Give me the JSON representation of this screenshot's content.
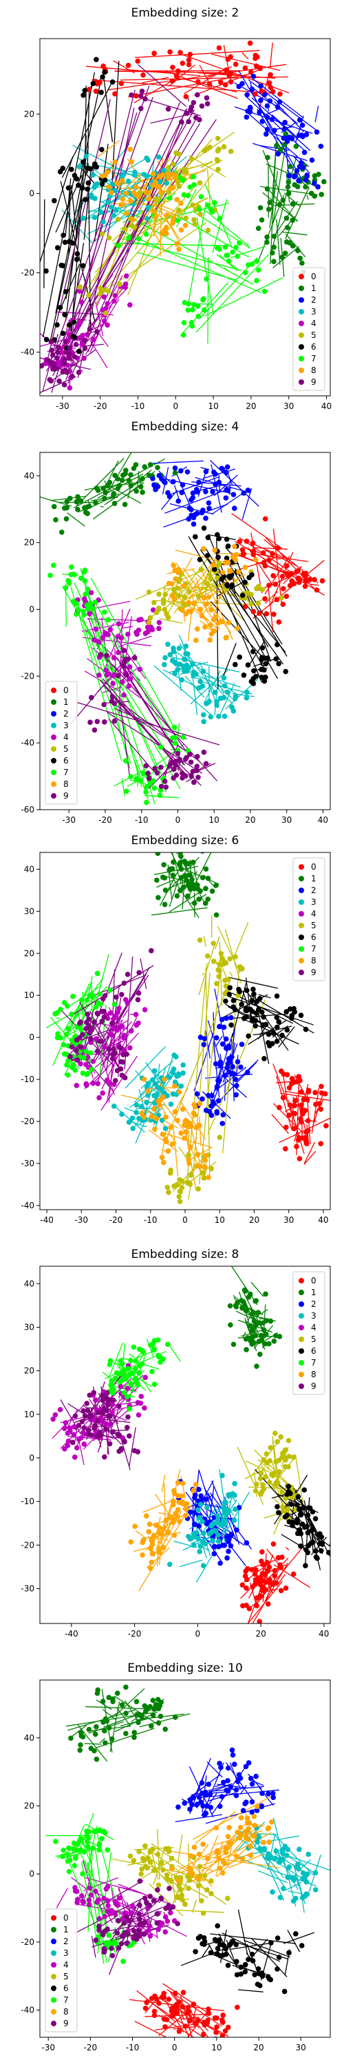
{
  "colors": {
    "0": "#ff0000",
    "1": "#008000",
    "2": "#0000ff",
    "3": "#00bfbf",
    "4": "#bf00bf",
    "5": "#bfbf00",
    "6": "#000000",
    "7": "#00ff00",
    "8": "#ffa500",
    "9": "#800080"
  },
  "chart_data": [
    {
      "type": "scatter",
      "title": "Embedding size: 2",
      "xlim": [
        -36,
        41
      ],
      "ylim": [
        -51,
        39
      ],
      "xticks": [
        -30,
        -20,
        -10,
        0,
        10,
        20,
        30,
        40
      ],
      "yticks": [
        -40,
        -20,
        0,
        20
      ],
      "legend": "bottom-right",
      "labels": [
        "0",
        "1",
        "2",
        "3",
        "4",
        "5",
        "6",
        "7",
        "8",
        "9"
      ],
      "clusters": {
        "0": [
          [
            0,
            33
          ],
          [
            14,
            31
          ],
          [
            25,
            28
          ],
          [
            -10,
            32
          ],
          [
            -18,
            30
          ],
          [
            5,
            30
          ],
          [
            20,
            33
          ]
        ],
        "1": [
          [
            25,
            -5
          ],
          [
            30,
            -15
          ],
          [
            28,
            10
          ],
          [
            32,
            0
          ],
          [
            27,
            -10
          ],
          [
            34,
            2
          ]
        ],
        "2": [
          [
            30,
            15
          ],
          [
            34,
            5
          ],
          [
            24,
            20
          ],
          [
            35,
            14
          ],
          [
            20,
            25
          ]
        ],
        "3": [
          [
            -23,
            5
          ],
          [
            -20,
            -5
          ],
          [
            -15,
            3
          ],
          [
            -10,
            -3
          ],
          [
            -5,
            5
          ]
        ],
        "4": [
          [
            -26,
            -35
          ],
          [
            -30,
            -43
          ],
          [
            -20,
            -30
          ],
          [
            -15,
            -25
          ],
          [
            -28,
            -40
          ]
        ],
        "5": [
          [
            -5,
            0
          ],
          [
            0,
            5
          ],
          [
            -15,
            -10
          ],
          [
            5,
            -5
          ],
          [
            10,
            10
          ],
          [
            -20,
            -25
          ]
        ],
        "6": [
          [
            -27,
            -15
          ],
          [
            -27,
            2
          ],
          [
            -20,
            28
          ],
          [
            -30,
            -35
          ],
          [
            -22,
            8
          ]
        ],
        "7": [
          [
            10,
            -3
          ],
          [
            0,
            0
          ],
          [
            -10,
            -10
          ],
          [
            15,
            -15
          ],
          [
            20,
            -20
          ],
          [
            5,
            -30
          ]
        ],
        "8": [
          [
            -10,
            0
          ],
          [
            -5,
            -5
          ],
          [
            0,
            -10
          ],
          [
            -15,
            5
          ],
          [
            -3,
            3
          ]
        ],
        "9": [
          [
            -30,
            -42
          ],
          [
            -25,
            -38
          ],
          [
            -10,
            25
          ],
          [
            5,
            20
          ],
          [
            -32,
            -45
          ]
        ]
      }
    },
    {
      "type": "scatter",
      "title": "Embedding size: 4",
      "xlim": [
        -38,
        42
      ],
      "ylim": [
        -60,
        47
      ],
      "xticks": [
        -30,
        -20,
        -10,
        0,
        10,
        20,
        30,
        40
      ],
      "yticks": [
        -60,
        -40,
        -20,
        0,
        20,
        40
      ],
      "legend": "bottom-left",
      "labels": [
        "0",
        "1",
        "2",
        "3",
        "4",
        "5",
        "6",
        "7",
        "8",
        "9"
      ],
      "clusters": {
        "0": [
          [
            30,
            10
          ],
          [
            20,
            20
          ],
          [
            35,
            8
          ],
          [
            25,
            0
          ],
          [
            28,
            15
          ]
        ],
        "1": [
          [
            -30,
            30
          ],
          [
            -20,
            35
          ],
          [
            -10,
            40
          ],
          [
            -25,
            30
          ],
          [
            -15,
            38
          ]
        ],
        "2": [
          [
            0,
            35
          ],
          [
            10,
            40
          ],
          [
            5,
            30
          ],
          [
            -5,
            38
          ],
          [
            15,
            35
          ]
        ],
        "3": [
          [
            10,
            -30
          ],
          [
            5,
            -20
          ],
          [
            15,
            -25
          ],
          [
            0,
            -15
          ]
        ],
        "4": [
          [
            -20,
            -10
          ],
          [
            -15,
            -20
          ],
          [
            -10,
            -5
          ],
          [
            -25,
            0
          ]
        ],
        "5": [
          [
            10,
            10
          ],
          [
            0,
            5
          ],
          [
            -5,
            0
          ],
          [
            20,
            5
          ]
        ],
        "6": [
          [
            20,
            -20
          ],
          [
            15,
            10
          ],
          [
            10,
            20
          ],
          [
            25,
            -15
          ]
        ],
        "7": [
          [
            -25,
            0
          ],
          [
            -30,
            10
          ],
          [
            -10,
            -50
          ],
          [
            -5,
            -55
          ],
          [
            0,
            -40
          ]
        ],
        "8": [
          [
            5,
            0
          ],
          [
            10,
            -5
          ],
          [
            0,
            10
          ],
          [
            15,
            15
          ]
        ],
        "9": [
          [
            0,
            -45
          ],
          [
            -5,
            -50
          ],
          [
            -20,
            -30
          ],
          [
            -15,
            -15
          ],
          [
            5,
            -48
          ]
        ]
      }
    },
    {
      "type": "scatter",
      "title": "Embedding size: 6",
      "xlim": [
        -42,
        42
      ],
      "ylim": [
        -41,
        44
      ],
      "xticks": [
        -40,
        -30,
        -20,
        -10,
        0,
        10,
        20,
        30,
        40
      ],
      "yticks": [
        -40,
        -30,
        -20,
        -10,
        0,
        10,
        20,
        30,
        40
      ],
      "legend": "top-right",
      "labels": [
        "0",
        "1",
        "2",
        "3",
        "4",
        "5",
        "6",
        "7",
        "8",
        "9"
      ],
      "clusters": {
        "0": [
          [
            32,
            -18
          ],
          [
            34,
            -25
          ],
          [
            30,
            -10
          ],
          [
            36,
            -15
          ]
        ],
        "1": [
          [
            -5,
            35
          ],
          [
            0,
            38
          ],
          [
            5,
            35
          ],
          [
            -2,
            40
          ]
        ],
        "2": [
          [
            12,
            -5
          ],
          [
            10,
            0
          ],
          [
            14,
            -10
          ],
          [
            8,
            -15
          ]
        ],
        "3": [
          [
            -10,
            -15
          ],
          [
            -5,
            -10
          ],
          [
            -15,
            -20
          ]
        ],
        "4": [
          [
            -25,
            -10
          ],
          [
            -20,
            0
          ],
          [
            -28,
            -5
          ],
          [
            -18,
            5
          ]
        ],
        "5": [
          [
            12,
            15
          ],
          [
            5,
            -30
          ],
          [
            0,
            -35
          ],
          [
            10,
            20
          ]
        ],
        "6": [
          [
            20,
            5
          ],
          [
            25,
            0
          ],
          [
            30,
            5
          ],
          [
            15,
            10
          ]
        ],
        "7": [
          [
            -32,
            5
          ],
          [
            -35,
            0
          ],
          [
            -30,
            -5
          ],
          [
            -25,
            10
          ]
        ],
        "8": [
          [
            -5,
            -25
          ],
          [
            0,
            -20
          ],
          [
            5,
            -30
          ],
          [
            -8,
            -15
          ]
        ],
        "9": [
          [
            -25,
            5
          ],
          [
            -20,
            -5
          ],
          [
            -30,
            0
          ],
          [
            -15,
            15
          ]
        ]
      }
    },
    {
      "type": "scatter",
      "title": "Embedding size: 8",
      "xlim": [
        -50,
        42
      ],
      "ylim": [
        -38,
        44
      ],
      "xticks": [
        -40,
        -20,
        0,
        20,
        40
      ],
      "yticks": [
        -30,
        -20,
        -10,
        0,
        10,
        20,
        30,
        40
      ],
      "legend": "top-right",
      "labels": [
        "0",
        "1",
        "2",
        "3",
        "4",
        "5",
        "6",
        "7",
        "8",
        "9"
      ],
      "clusters": {
        "0": [
          [
            20,
            -28
          ],
          [
            25,
            -25
          ],
          [
            18,
            -32
          ]
        ],
        "1": [
          [
            15,
            35
          ],
          [
            20,
            30
          ],
          [
            18,
            25
          ]
        ],
        "2": [
          [
            5,
            -15
          ],
          [
            10,
            -20
          ],
          [
            0,
            -10
          ]
        ],
        "3": [
          [
            5,
            -15
          ],
          [
            0,
            -20
          ],
          [
            10,
            -10
          ]
        ],
        "4": [
          [
            -30,
            10
          ],
          [
            -40,
            5
          ],
          [
            -20,
            15
          ]
        ],
        "5": [
          [
            20,
            -5
          ],
          [
            25,
            0
          ],
          [
            30,
            -10
          ]
        ],
        "6": [
          [
            35,
            -15
          ],
          [
            30,
            -10
          ],
          [
            38,
            -20
          ]
        ],
        "7": [
          [
            -20,
            20
          ],
          [
            -15,
            25
          ],
          [
            -25,
            18
          ]
        ],
        "8": [
          [
            -10,
            -15
          ],
          [
            -5,
            -10
          ],
          [
            -15,
            -20
          ]
        ],
        "9": [
          [
            -35,
            8
          ],
          [
            -30,
            12
          ],
          [
            -25,
            5
          ]
        ]
      }
    },
    {
      "type": "scatter",
      "title": "Embedding size: 10",
      "xlim": [
        -32,
        37
      ],
      "ylim": [
        -48,
        57
      ],
      "xticks": [
        -30,
        -20,
        -10,
        0,
        10,
        20,
        30
      ],
      "yticks": [
        -40,
        -20,
        0,
        20,
        40
      ],
      "legend": "bottom-left",
      "labels": [
        "0",
        "1",
        "2",
        "3",
        "4",
        "5",
        "6",
        "7",
        "8",
        "9"
      ],
      "clusters": {
        "0": [
          [
            0,
            -40
          ],
          [
            5,
            -42
          ],
          [
            10,
            -45
          ],
          [
            -5,
            -38
          ]
        ],
        "1": [
          [
            -15,
            50
          ],
          [
            -10,
            45
          ],
          [
            -20,
            40
          ],
          [
            -5,
            48
          ]
        ],
        "2": [
          [
            10,
            25
          ],
          [
            15,
            30
          ],
          [
            5,
            20
          ],
          [
            20,
            22
          ]
        ],
        "3": [
          [
            25,
            5
          ],
          [
            30,
            0
          ],
          [
            20,
            10
          ],
          [
            28,
            -5
          ]
        ],
        "4": [
          [
            -15,
            -10
          ],
          [
            -5,
            -15
          ],
          [
            -20,
            -5
          ]
        ],
        "5": [
          [
            -5,
            5
          ],
          [
            0,
            0
          ],
          [
            5,
            -5
          ]
        ],
        "6": [
          [
            15,
            -25
          ],
          [
            20,
            -30
          ],
          [
            10,
            -20
          ],
          [
            25,
            -22
          ]
        ],
        "7": [
          [
            -20,
            10
          ],
          [
            -25,
            5
          ],
          [
            -15,
            -20
          ]
        ],
        "8": [
          [
            15,
            10
          ],
          [
            10,
            5
          ],
          [
            20,
            15
          ],
          [
            5,
            0
          ]
        ],
        "9": [
          [
            -10,
            -15
          ],
          [
            -15,
            -20
          ],
          [
            -5,
            -10
          ]
        ]
      }
    }
  ]
}
